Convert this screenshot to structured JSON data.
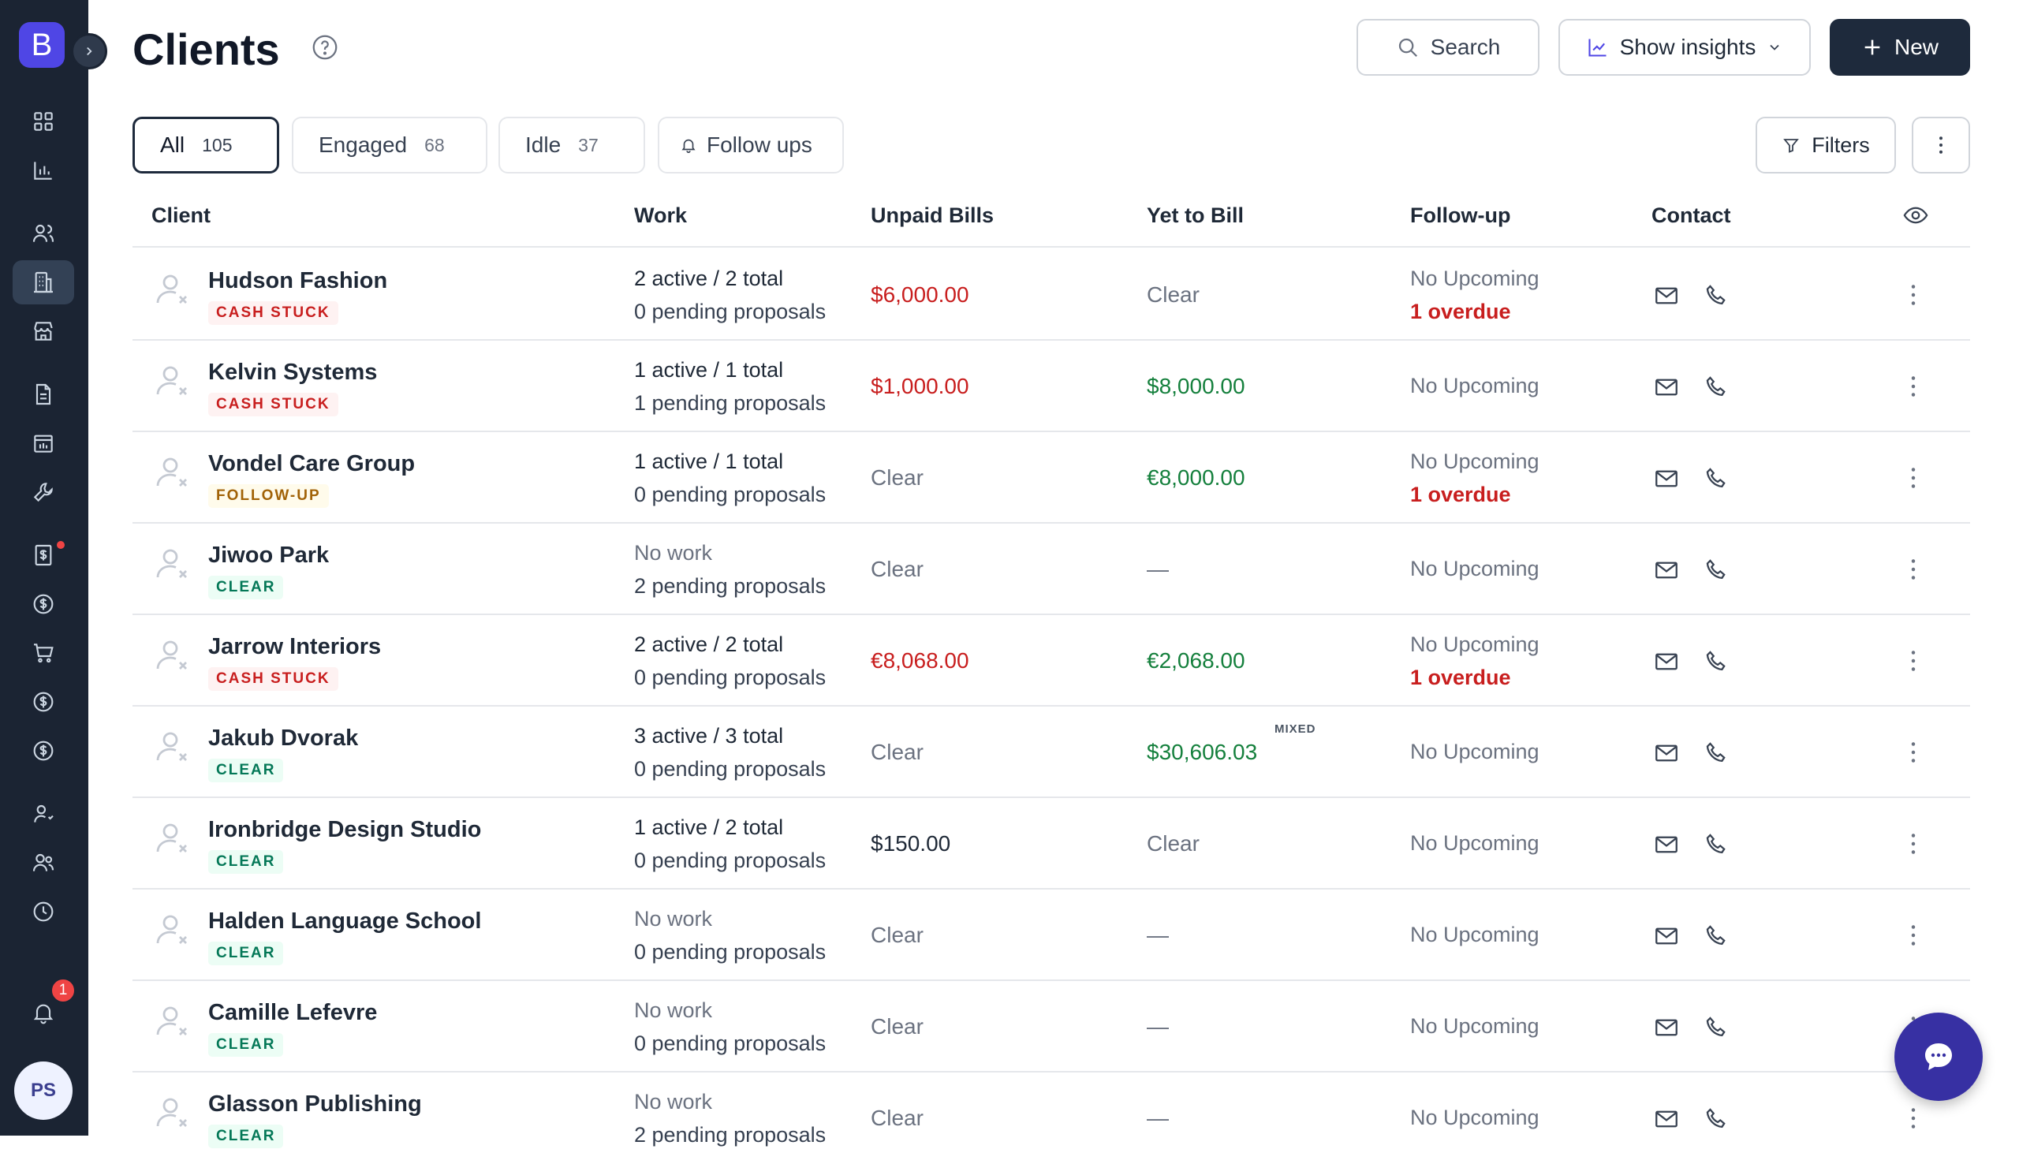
{
  "app": {
    "logo_letter": "B",
    "user_initials": "PS",
    "notification_count": "1"
  },
  "header": {
    "title": "Clients",
    "search_label": "Search",
    "insights_label": "Show insights",
    "new_label": "New"
  },
  "tabs": [
    {
      "label": "All",
      "count": "105"
    },
    {
      "label": "Engaged",
      "count": "68"
    },
    {
      "label": "Idle",
      "count": "37"
    },
    {
      "label": "Follow ups"
    }
  ],
  "toolbar": {
    "filters_label": "Filters"
  },
  "table": {
    "columns": [
      "Client",
      "Work",
      "Unpaid Bills",
      "Yet to Bill",
      "Follow-up",
      "Contact"
    ],
    "rows": [
      {
        "name": "Hudson Fashion",
        "status": "CASH STUCK",
        "work_line1": "2 active / 2 total",
        "work_line2": "0 pending proposals",
        "unpaid": "$6,000.00",
        "yet_to_bill": "Clear",
        "follow_up": "No Upcoming",
        "overdue": "1 overdue"
      },
      {
        "name": "Kelvin Systems",
        "status": "CASH STUCK",
        "work_line1": "1 active / 1 total",
        "work_line2": "1 pending proposals",
        "unpaid": "$1,000.00",
        "yet_to_bill": "$8,000.00",
        "follow_up": "No Upcoming",
        "overdue": ""
      },
      {
        "name": "Vondel Care Group",
        "status": "FOLLOW-UP",
        "work_line1": "1 active / 1 total",
        "work_line2": "0 pending proposals",
        "unpaid": "Clear",
        "yet_to_bill": "€8,000.00",
        "follow_up": "No Upcoming",
        "overdue": "1 overdue"
      },
      {
        "name": "Jiwoo Park",
        "status": "CLEAR",
        "work_line1": "No work",
        "work_line2": "2 pending proposals",
        "unpaid": "Clear",
        "yet_to_bill": "—",
        "follow_up": "No Upcoming",
        "overdue": ""
      },
      {
        "name": "Jarrow Interiors",
        "status": "CASH STUCK",
        "work_line1": "2 active / 2 total",
        "work_line2": "0 pending proposals",
        "unpaid": "€8,068.00",
        "yet_to_bill": "€2,068.00",
        "follow_up": "No Upcoming",
        "overdue": "1 overdue"
      },
      {
        "name": "Jakub Dvorak",
        "status": "CLEAR",
        "work_line1": "3 active / 3 total",
        "work_line2": "0 pending proposals",
        "unpaid": "Clear",
        "yet_to_bill": "$30,606.03",
        "yet_to_bill_tag": "MIXED",
        "follow_up": "No Upcoming",
        "overdue": ""
      },
      {
        "name": "Ironbridge Design Studio",
        "status": "CLEAR",
        "work_line1": "1 active / 2 total",
        "work_line2": "0 pending proposals",
        "unpaid": "$150.00",
        "yet_to_bill": "Clear",
        "follow_up": "No Upcoming",
        "overdue": ""
      },
      {
        "name": "Halden Language School",
        "status": "CLEAR",
        "work_line1": "No work",
        "work_line2": "0 pending proposals",
        "unpaid": "Clear",
        "yet_to_bill": "—",
        "follow_up": "No Upcoming",
        "overdue": ""
      },
      {
        "name": "Camille Lefevre",
        "status": "CLEAR",
        "work_line1": "No work",
        "work_line2": "0 pending proposals",
        "unpaid": "Clear",
        "yet_to_bill": "—",
        "follow_up": "No Upcoming",
        "overdue": ""
      },
      {
        "name": "Glasson Publishing",
        "status": "CLEAR",
        "work_line1": "No work",
        "work_line2": "2 pending proposals",
        "unpaid": "Clear",
        "yet_to_bill": "—",
        "follow_up": "No Upcoming",
        "overdue": ""
      }
    ]
  },
  "colors": {
    "sidebar": "#1b2433",
    "accent": "#4f46e5",
    "primary_button": "#1e2a3c",
    "negative": "#c81e1e",
    "positive": "#15803d"
  },
  "icons": [
    "dashboard-icon",
    "chart-icon",
    "users-icon",
    "building-icon",
    "store-icon",
    "document-icon",
    "report-icon",
    "wrench-icon",
    "invoice-icon",
    "dollar-icon",
    "cart-icon",
    "dollar-icon",
    "dollar-icon",
    "user-icon",
    "team-icon",
    "clock-icon",
    "bell-icon",
    "chat-icon"
  ]
}
